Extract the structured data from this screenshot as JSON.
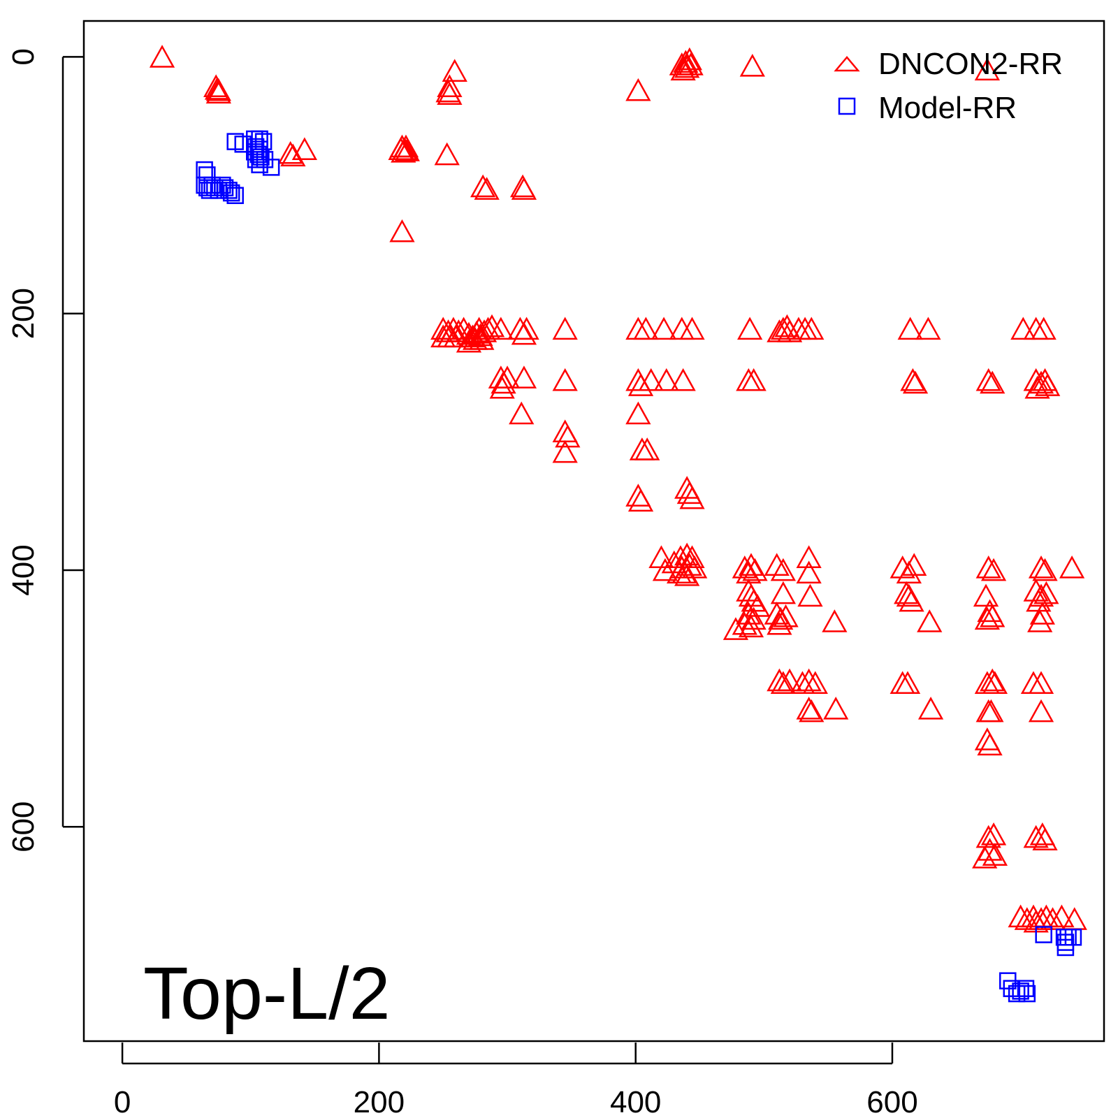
{
  "chart_data": {
    "type": "scatter",
    "title": "",
    "annotation": "Top-L/2",
    "xlabel": "",
    "ylabel": "",
    "xlim": [
      -30,
      765
    ],
    "ylim": [
      -28,
      767
    ],
    "y_inverted": true,
    "x_ticks": [
      0,
      200,
      400,
      600
    ],
    "y_ticks": [
      0,
      200,
      400,
      600
    ],
    "x_tick_labels": [
      "0",
      "200",
      "400",
      "600"
    ],
    "y_tick_labels": [
      "0",
      "200",
      "400",
      "600"
    ],
    "legend_position": "top-right",
    "series": [
      {
        "name": "DNCON2-RR",
        "marker": "triangle",
        "color": "#ff0000",
        "points": [
          [
            31,
            2
          ],
          [
            73,
            25
          ],
          [
            74,
            27
          ],
          [
            75,
            28
          ],
          [
            75,
            30
          ],
          [
            131,
            77
          ],
          [
            133,
            79
          ],
          [
            142,
            74
          ],
          [
            217,
            74
          ],
          [
            218,
            72
          ],
          [
            219,
            76
          ],
          [
            220,
            74
          ],
          [
            221,
            72
          ],
          [
            222,
            75
          ],
          [
            218,
            138
          ],
          [
            259,
            13
          ],
          [
            255,
            25
          ],
          [
            254,
            29
          ],
          [
            255,
            31
          ],
          [
            253,
            78
          ],
          [
            281,
            103
          ],
          [
            284,
            105
          ],
          [
            312,
            103
          ],
          [
            313,
            105
          ],
          [
            402,
            28
          ],
          [
            436,
            8
          ],
          [
            439,
            6
          ],
          [
            442,
            4
          ],
          [
            437,
            12
          ],
          [
            440,
            10
          ],
          [
            443,
            8
          ],
          [
            491,
            9
          ],
          [
            674,
            12
          ],
          [
            250,
            214
          ],
          [
            254,
            216
          ],
          [
            258,
            214
          ],
          [
            262,
            216
          ],
          [
            266,
            214
          ],
          [
            250,
            220
          ],
          [
            255,
            220
          ],
          [
            260,
            220
          ],
          [
            270,
            218
          ],
          [
            273,
            220
          ],
          [
            276,
            217
          ],
          [
            279,
            219
          ],
          [
            282,
            216
          ],
          [
            285,
            214
          ],
          [
            288,
            212
          ],
          [
            275,
            222
          ],
          [
            280,
            222
          ],
          [
            270,
            224
          ],
          [
            278,
            214
          ],
          [
            295,
            214
          ],
          [
            310,
            214
          ],
          [
            313,
            218
          ],
          [
            315,
            214
          ],
          [
            345,
            214
          ],
          [
            402,
            214
          ],
          [
            408,
            214
          ],
          [
            422,
            214
          ],
          [
            436,
            214
          ],
          [
            444,
            214
          ],
          [
            489,
            214
          ],
          [
            512,
            216
          ],
          [
            515,
            214
          ],
          [
            518,
            212
          ],
          [
            520,
            216
          ],
          [
            527,
            214
          ],
          [
            532,
            214
          ],
          [
            537,
            214
          ],
          [
            614,
            214
          ],
          [
            628,
            214
          ],
          [
            702,
            214
          ],
          [
            712,
            214
          ],
          [
            718,
            214
          ],
          [
            295,
            252
          ],
          [
            297,
            256
          ],
          [
            300,
            252
          ],
          [
            296,
            260
          ],
          [
            313,
            252
          ],
          [
            345,
            254
          ],
          [
            402,
            254
          ],
          [
            404,
            258
          ],
          [
            412,
            254
          ],
          [
            424,
            254
          ],
          [
            437,
            254
          ],
          [
            488,
            254
          ],
          [
            492,
            254
          ],
          [
            616,
            254
          ],
          [
            618,
            256
          ],
          [
            675,
            254
          ],
          [
            678,
            256
          ],
          [
            712,
            254
          ],
          [
            716,
            256
          ],
          [
            719,
            254
          ],
          [
            721,
            258
          ],
          [
            713,
            260
          ],
          [
            311,
            280
          ],
          [
            345,
            294
          ],
          [
            347,
            298
          ],
          [
            345,
            310
          ],
          [
            402,
            280
          ],
          [
            405,
            308
          ],
          [
            409,
            308
          ],
          [
            402,
            344
          ],
          [
            404,
            348
          ],
          [
            440,
            338
          ],
          [
            442,
            342
          ],
          [
            444,
            346
          ],
          [
            420,
            392
          ],
          [
            423,
            402
          ],
          [
            430,
            396
          ],
          [
            435,
            392
          ],
          [
            440,
            390
          ],
          [
            444,
            392
          ],
          [
            436,
            400
          ],
          [
            438,
            404
          ],
          [
            442,
            398
          ],
          [
            446,
            400
          ],
          [
            434,
            404
          ],
          [
            440,
            406
          ],
          [
            485,
            400
          ],
          [
            488,
            404
          ],
          [
            490,
            398
          ],
          [
            493,
            402
          ],
          [
            488,
            418
          ],
          [
            490,
            422
          ],
          [
            492,
            426
          ],
          [
            495,
            430
          ],
          [
            488,
            436
          ],
          [
            492,
            440
          ],
          [
            485,
            444
          ],
          [
            490,
            446
          ],
          [
            478,
            448
          ],
          [
            510,
            398
          ],
          [
            515,
            402
          ],
          [
            515,
            420
          ],
          [
            510,
            436
          ],
          [
            513,
            440
          ],
          [
            517,
            438
          ],
          [
            512,
            444
          ],
          [
            535,
            392
          ],
          [
            535,
            404
          ],
          [
            536,
            422
          ],
          [
            555,
            442
          ],
          [
            608,
            400
          ],
          [
            613,
            404
          ],
          [
            617,
            398
          ],
          [
            611,
            420
          ],
          [
            613,
            422
          ],
          [
            615,
            426
          ],
          [
            629,
            442
          ],
          [
            675,
            400
          ],
          [
            679,
            402
          ],
          [
            673,
            422
          ],
          [
            676,
            434
          ],
          [
            678,
            438
          ],
          [
            674,
            440
          ],
          [
            716,
            400
          ],
          [
            719,
            402
          ],
          [
            712,
            418
          ],
          [
            716,
            422
          ],
          [
            720,
            420
          ],
          [
            714,
            426
          ],
          [
            717,
            436
          ],
          [
            715,
            442
          ],
          [
            740,
            400
          ],
          [
            512,
            488
          ],
          [
            515,
            490
          ],
          [
            520,
            488
          ],
          [
            530,
            490
          ],
          [
            535,
            488
          ],
          [
            540,
            490
          ],
          [
            535,
            510
          ],
          [
            537,
            512
          ],
          [
            556,
            510
          ],
          [
            608,
            490
          ],
          [
            612,
            490
          ],
          [
            630,
            510
          ],
          [
            674,
            490
          ],
          [
            678,
            488
          ],
          [
            680,
            490
          ],
          [
            675,
            512
          ],
          [
            677,
            512
          ],
          [
            674,
            534
          ],
          [
            676,
            538
          ],
          [
            710,
            490
          ],
          [
            716,
            490
          ],
          [
            716,
            512
          ],
          [
            675,
            610
          ],
          [
            679,
            608
          ],
          [
            676,
            620
          ],
          [
            680,
            624
          ],
          [
            672,
            626
          ],
          [
            712,
            610
          ],
          [
            717,
            608
          ],
          [
            719,
            612
          ],
          [
            700,
            672
          ],
          [
            705,
            674
          ],
          [
            710,
            672
          ],
          [
            712,
            676
          ],
          [
            716,
            674
          ],
          [
            720,
            672
          ],
          [
            725,
            674
          ],
          [
            732,
            672
          ],
          [
            742,
            674
          ]
        ]
      },
      {
        "name": "Model-RR",
        "marker": "square",
        "color": "#0000ff",
        "points": [
          [
            88,
            66
          ],
          [
            94,
            68
          ],
          [
            103,
            64
          ],
          [
            107,
            64
          ],
          [
            110,
            66
          ],
          [
            104,
            70
          ],
          [
            107,
            72
          ],
          [
            103,
            74
          ],
          [
            106,
            76
          ],
          [
            108,
            78
          ],
          [
            111,
            80
          ],
          [
            104,
            80
          ],
          [
            107,
            84
          ],
          [
            116,
            86
          ],
          [
            64,
            88
          ],
          [
            66,
            92
          ],
          [
            64,
            100
          ],
          [
            66,
            102
          ],
          [
            68,
            104
          ],
          [
            70,
            100
          ],
          [
            72,
            102
          ],
          [
            75,
            104
          ],
          [
            78,
            100
          ],
          [
            80,
            102
          ],
          [
            83,
            104
          ],
          [
            85,
            106
          ],
          [
            88,
            108
          ],
          [
            734,
            686
          ],
          [
            735,
            690
          ],
          [
            735,
            694
          ],
          [
            737,
            686
          ],
          [
            741,
            686
          ],
          [
            718,
            684
          ],
          [
            690,
            720
          ],
          [
            693,
            726
          ],
          [
            697,
            730
          ],
          [
            700,
            728
          ],
          [
            704,
            726
          ],
          [
            705,
            730
          ]
        ]
      }
    ]
  }
}
